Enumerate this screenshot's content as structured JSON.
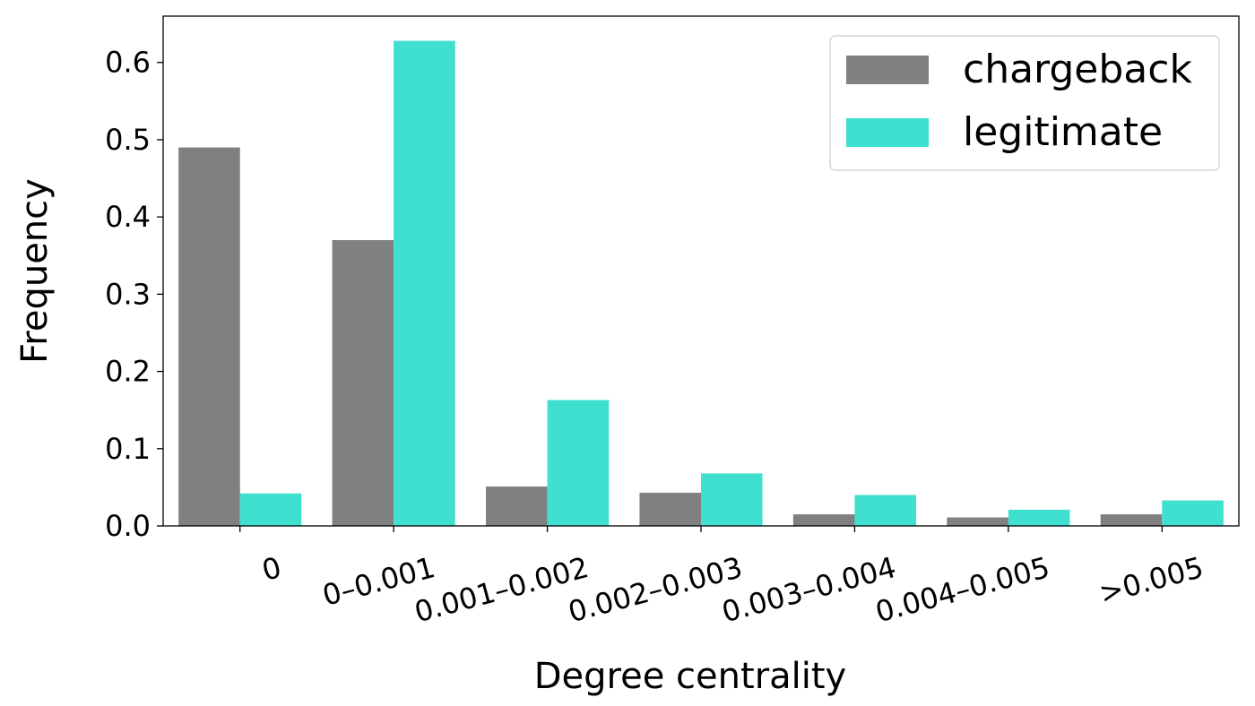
{
  "chart_data": {
    "type": "bar",
    "xlabel": "Degree centrality",
    "ylabel": "Frequency",
    "categories": [
      "0",
      "0–0.001",
      "0.001–0.002",
      "0.002–0.003",
      "0.003–0.004",
      "0.004–0.005",
      ">0.005"
    ],
    "series": [
      {
        "name": "chargeback",
        "color": "#808080",
        "values": [
          0.49,
          0.37,
          0.051,
          0.043,
          0.015,
          0.011,
          0.015
        ]
      },
      {
        "name": "legitimate",
        "color": "#40e0d0",
        "values": [
          0.042,
          0.628,
          0.163,
          0.068,
          0.04,
          0.021,
          0.033
        ]
      }
    ],
    "ylim": [
      0,
      0.66
    ],
    "yticks": [
      "0.0",
      "0.1",
      "0.2",
      "0.3",
      "0.4",
      "0.5",
      "0.6"
    ],
    "grid": false,
    "legend": "top-right"
  }
}
